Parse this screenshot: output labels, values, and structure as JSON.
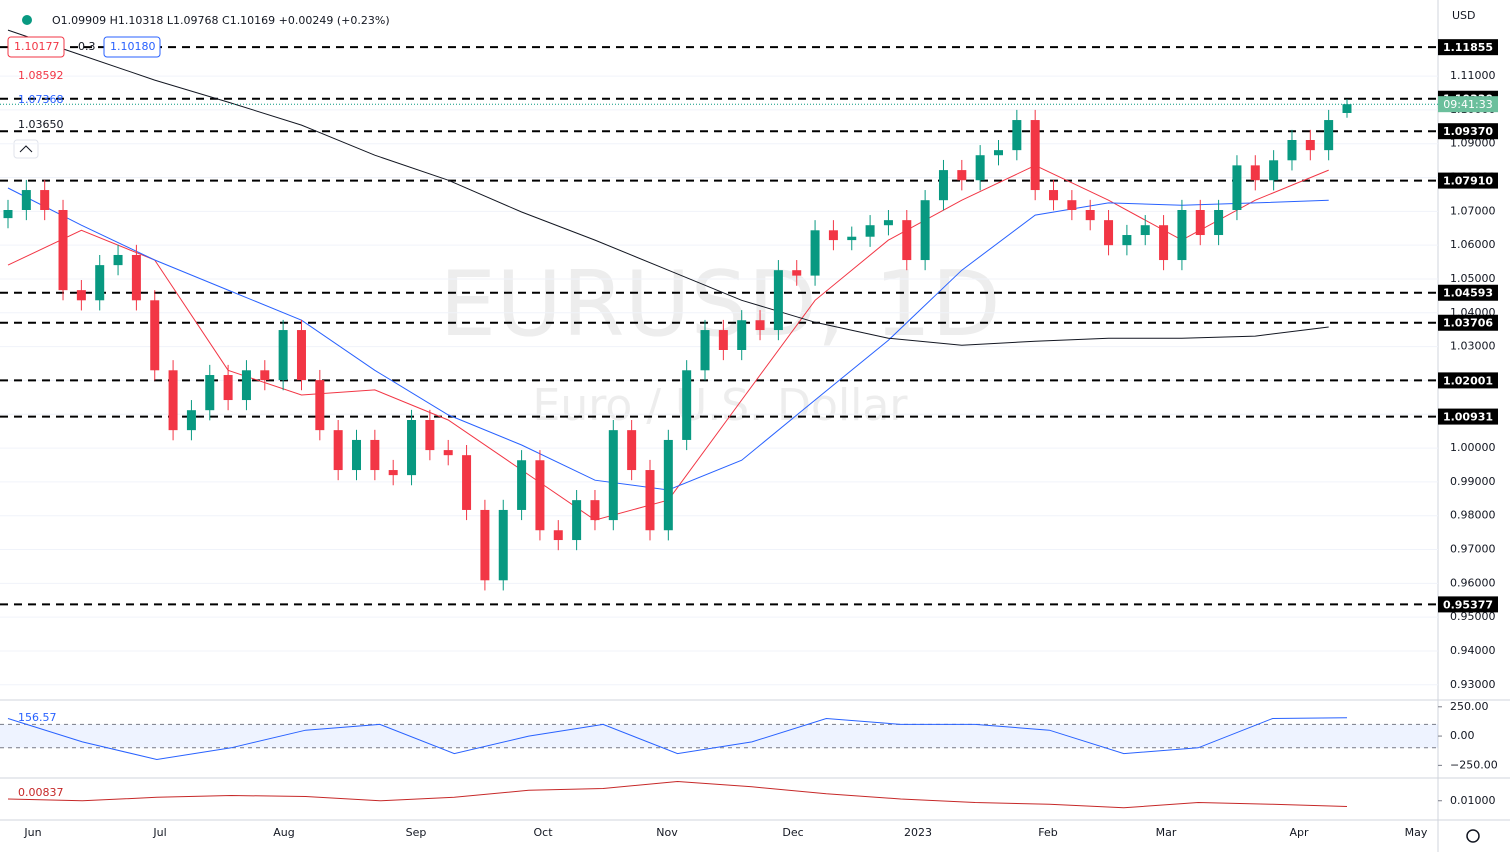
{
  "chart_data": {
    "type": "candlestick",
    "watermark": "EURUSD, 1D",
    "description": "Euro / U.S. Dollar",
    "currency": "USD",
    "ohlc_legend": "O1.09909 H1.10318 L1.09768 C1.10169 +0.00249 (+0.23%)",
    "countdown": "09:41:33",
    "left_labels": [
      {
        "text": "1.10177",
        "color": "#f23645",
        "boxed": true
      },
      {
        "text": "0.3",
        "color": "#131722",
        "boxed": false
      },
      {
        "text": "1.10180",
        "color": "#2962ff",
        "boxed": true
      },
      {
        "text": "1.08592",
        "color": "#f23645",
        "boxed": false
      },
      {
        "text": "1.07368",
        "color": "#2962ff",
        "boxed": false
      },
      {
        "text": "1.03650",
        "color": "#131722",
        "boxed": false
      }
    ],
    "x_labels": [
      "Jun",
      "Jul",
      "Aug",
      "Sep",
      "Oct",
      "Nov",
      "Dec",
      "2023",
      "Feb",
      "Mar",
      "Apr",
      "May"
    ],
    "ylim": [
      0.9255,
      1.1325
    ],
    "yticks": [
      {
        "value": 0.93,
        "label": "0.93000"
      },
      {
        "value": 0.94,
        "label": "0.94000"
      },
      {
        "value": 0.95,
        "label": "0.95000"
      },
      {
        "value": 0.96,
        "label": "0.96000"
      },
      {
        "value": 0.97,
        "label": "0.97000"
      },
      {
        "value": 0.98,
        "label": "0.98000"
      },
      {
        "value": 0.99,
        "label": "0.99000"
      },
      {
        "value": 1.0,
        "label": "1.00000"
      },
      {
        "value": 1.01,
        "label": "1.01000"
      },
      {
        "value": 1.02,
        "label": "1.02000"
      },
      {
        "value": 1.03,
        "label": "1.03000"
      },
      {
        "value": 1.04,
        "label": "1.04000"
      },
      {
        "value": 1.05,
        "label": "1.05000"
      },
      {
        "value": 1.06,
        "label": "1.06000"
      },
      {
        "value": 1.07,
        "label": "1.07000"
      },
      {
        "value": 1.08,
        "label": "1.08000"
      },
      {
        "value": 1.09,
        "label": "1.09000"
      },
      {
        "value": 1.1,
        "label": "1.10000"
      },
      {
        "value": 1.11,
        "label": "1.11000"
      }
    ],
    "up_color": "#089981",
    "down_color": "#f23645",
    "candles": [
      [
        1.068,
        1.0734,
        1.065,
        1.0704
      ],
      [
        1.0704,
        1.0793,
        1.0674,
        1.0763
      ],
      [
        1.0763,
        1.0793,
        1.0674,
        1.0704
      ],
      [
        1.0704,
        1.0734,
        1.0437,
        1.0467
      ],
      [
        1.0467,
        1.0497,
        1.0407,
        1.0437
      ],
      [
        1.0437,
        1.0571,
        1.0407,
        1.0541
      ],
      [
        1.0541,
        1.0601,
        1.0511,
        1.0571
      ],
      [
        1.0571,
        1.0601,
        1.0407,
        1.0437
      ],
      [
        1.0437,
        1.0467,
        1.02,
        1.023
      ],
      [
        1.023,
        1.026,
        1.0023,
        1.0053
      ],
      [
        1.0053,
        1.0142,
        1.0023,
        1.0112
      ],
      [
        1.0112,
        1.0246,
        1.0082,
        1.0216
      ],
      [
        1.0216,
        1.0246,
        1.0112,
        1.0142
      ],
      [
        1.0142,
        1.026,
        1.0112,
        1.023
      ],
      [
        1.023,
        1.026,
        1.0171,
        1.0201
      ],
      [
        1.0201,
        1.0379,
        1.0171,
        1.0349
      ],
      [
        1.0349,
        1.0379,
        1.0171,
        1.0201
      ],
      [
        1.0201,
        1.0231,
        1.0023,
        1.0053
      ],
      [
        1.0053,
        1.0083,
        0.9905,
        0.9935
      ],
      [
        0.9935,
        1.0054,
        0.9905,
        1.0024
      ],
      [
        1.0024,
        1.0054,
        0.9905,
        0.9935
      ],
      [
        0.9935,
        0.9965,
        0.989,
        0.992
      ],
      [
        0.992,
        1.0113,
        0.989,
        1.0083
      ],
      [
        1.0083,
        1.0113,
        0.9964,
        0.9994
      ],
      [
        0.9994,
        1.0024,
        0.9949,
        0.9979
      ],
      [
        0.9979,
        1.0009,
        0.9787,
        0.9817
      ],
      [
        0.9817,
        0.9847,
        0.9579,
        0.9609
      ],
      [
        0.9609,
        0.9847,
        0.9579,
        0.9817
      ],
      [
        0.9817,
        0.9994,
        0.9787,
        0.9964
      ],
      [
        0.9964,
        0.9994,
        0.9727,
        0.9757
      ],
      [
        0.9757,
        0.9787,
        0.9698,
        0.9728
      ],
      [
        0.9728,
        0.9876,
        0.9698,
        0.9846
      ],
      [
        0.9846,
        0.9876,
        0.9757,
        0.9787
      ],
      [
        0.9787,
        1.0083,
        0.9757,
        1.0053
      ],
      [
        1.0053,
        1.0083,
        0.9905,
        0.9935
      ],
      [
        0.9935,
        0.9965,
        0.9727,
        0.9757
      ],
      [
        0.9757,
        1.0054,
        0.9727,
        1.0024
      ],
      [
        1.0024,
        1.026,
        0.9994,
        1.023
      ],
      [
        1.023,
        1.0379,
        1.02,
        1.0349
      ],
      [
        1.0349,
        1.0379,
        1.026,
        1.029
      ],
      [
        1.029,
        1.0408,
        1.026,
        1.0378
      ],
      [
        1.0378,
        1.0408,
        1.0319,
        1.0349
      ],
      [
        1.0349,
        1.0556,
        1.0319,
        1.0526
      ],
      [
        1.0526,
        1.0556,
        1.048,
        1.051
      ],
      [
        1.051,
        1.0674,
        1.048,
        1.0644
      ],
      [
        1.0644,
        1.0674,
        1.0585,
        1.0615
      ],
      [
        1.0615,
        1.0655,
        1.0585,
        1.0625
      ],
      [
        1.0625,
        1.0689,
        1.0595,
        1.0659
      ],
      [
        1.0659,
        1.0704,
        1.0629,
        1.0674
      ],
      [
        1.0674,
        1.0704,
        1.0526,
        1.0556
      ],
      [
        1.0556,
        1.0763,
        1.0526,
        1.0733
      ],
      [
        1.0733,
        1.0852,
        1.0703,
        1.0822
      ],
      [
        1.0822,
        1.0852,
        1.0762,
        1.0792
      ],
      [
        1.0792,
        1.0896,
        1.0762,
        1.0866
      ],
      [
        1.0866,
        1.0911,
        1.0836,
        1.0881
      ],
      [
        1.0881,
        1.1,
        1.0851,
        1.097
      ],
      [
        1.097,
        1.1,
        1.0733,
        1.0763
      ],
      [
        1.0763,
        1.0793,
        1.0703,
        1.0733
      ],
      [
        1.0733,
        1.0763,
        1.0674,
        1.0704
      ],
      [
        1.0704,
        1.0734,
        1.0644,
        1.0674
      ],
      [
        1.0674,
        1.0704,
        1.057,
        1.06
      ],
      [
        1.06,
        1.066,
        1.057,
        1.063
      ],
      [
        1.063,
        1.0689,
        1.06,
        1.0659
      ],
      [
        1.0659,
        1.0689,
        1.0526,
        1.0556
      ],
      [
        1.0556,
        1.0734,
        1.0526,
        1.0704
      ],
      [
        1.0704,
        1.0734,
        1.06,
        1.063
      ],
      [
        1.063,
        1.0734,
        1.06,
        1.0704
      ],
      [
        1.0704,
        1.0866,
        1.0674,
        1.0836
      ],
      [
        1.0836,
        1.0866,
        1.0762,
        1.0792
      ],
      [
        1.0792,
        1.0881,
        1.0762,
        1.0851
      ],
      [
        1.0851,
        1.0941,
        1.0821,
        1.0911
      ],
      [
        1.0911,
        1.0941,
        1.0851,
        1.0881
      ],
      [
        1.0881,
        1.1,
        1.0851,
        1.097
      ],
      [
        1.09909,
        1.10318,
        1.09768,
        1.10169
      ]
    ],
    "moving_averages": [
      {
        "color": "#f23645",
        "values": [
          1.0541,
          1.0644,
          1.0556,
          1.023,
          1.0157,
          1.0172,
          1.0083,
          0.9935,
          0.9787,
          0.9846,
          1.0142,
          1.0437,
          1.0615,
          1.0733,
          1.0836,
          1.0733,
          1.0615,
          1.0733,
          1.0822
        ]
      },
      {
        "color": "#2962ff",
        "values": [
          1.0769,
          1.0659,
          1.0556,
          1.0467,
          1.0378,
          1.023,
          1.0098,
          1.0009,
          0.9905,
          0.9876,
          0.9964,
          1.0142,
          1.0319,
          1.0526,
          1.0689,
          1.0725,
          1.0718,
          1.0725,
          1.0733
        ]
      },
      {
        "color": "#131722",
        "values": [
          1.1236,
          1.1162,
          1.1088,
          1.1023,
          1.0955,
          1.0866,
          1.0792,
          1.0698,
          1.0615,
          1.0526,
          1.0437,
          1.0372,
          1.0325,
          1.0304,
          1.0316,
          1.0325,
          1.0325,
          1.0331,
          1.0358
        ]
      }
    ],
    "levels": [
      {
        "value": 1.11855,
        "label": "1.11855"
      },
      {
        "value": 1.1033,
        "label": "1.10330"
      },
      {
        "value": 1.0937,
        "label": "1.09370"
      },
      {
        "value": 1.0791,
        "label": "1.07910"
      },
      {
        "value": 1.04593,
        "label": "1.04593"
      },
      {
        "value": 1.03706,
        "label": "1.03706"
      },
      {
        "value": 1.02001,
        "label": "1.02001"
      },
      {
        "value": 1.00931,
        "label": "1.00931"
      },
      {
        "value": 0.95377,
        "label": "0.95377"
      }
    ],
    "indicators": [
      {
        "value_label": "156.57",
        "color": "#2962ff",
        "ylim": [
          -358,
          308
        ],
        "band": [
          100,
          -100
        ],
        "yticks": [
          {
            "value": 250,
            "label": "250.00"
          },
          {
            "value": 0,
            "label": "0.00"
          },
          {
            "value": -250,
            "label": "−250.00"
          }
        ],
        "values": [
          150,
          -50,
          -200,
          -100,
          50,
          100,
          -150,
          0,
          100,
          -150,
          -50,
          150,
          100,
          100,
          50,
          -150,
          -100,
          150,
          156.57
        ]
      },
      {
        "value_label": "0.00837",
        "color": "#c62828",
        "ylim": [
          0.0045,
          0.0165
        ],
        "yticks": [
          {
            "value": 0.01,
            "label": "0.01000"
          }
        ],
        "values": [
          0.0105,
          0.01,
          0.011,
          0.0115,
          0.0112,
          0.01,
          0.011,
          0.013,
          0.0135,
          0.0155,
          0.014,
          0.012,
          0.0105,
          0.0095,
          0.009,
          0.008,
          0.0095,
          0.009,
          0.00837
        ]
      }
    ]
  }
}
